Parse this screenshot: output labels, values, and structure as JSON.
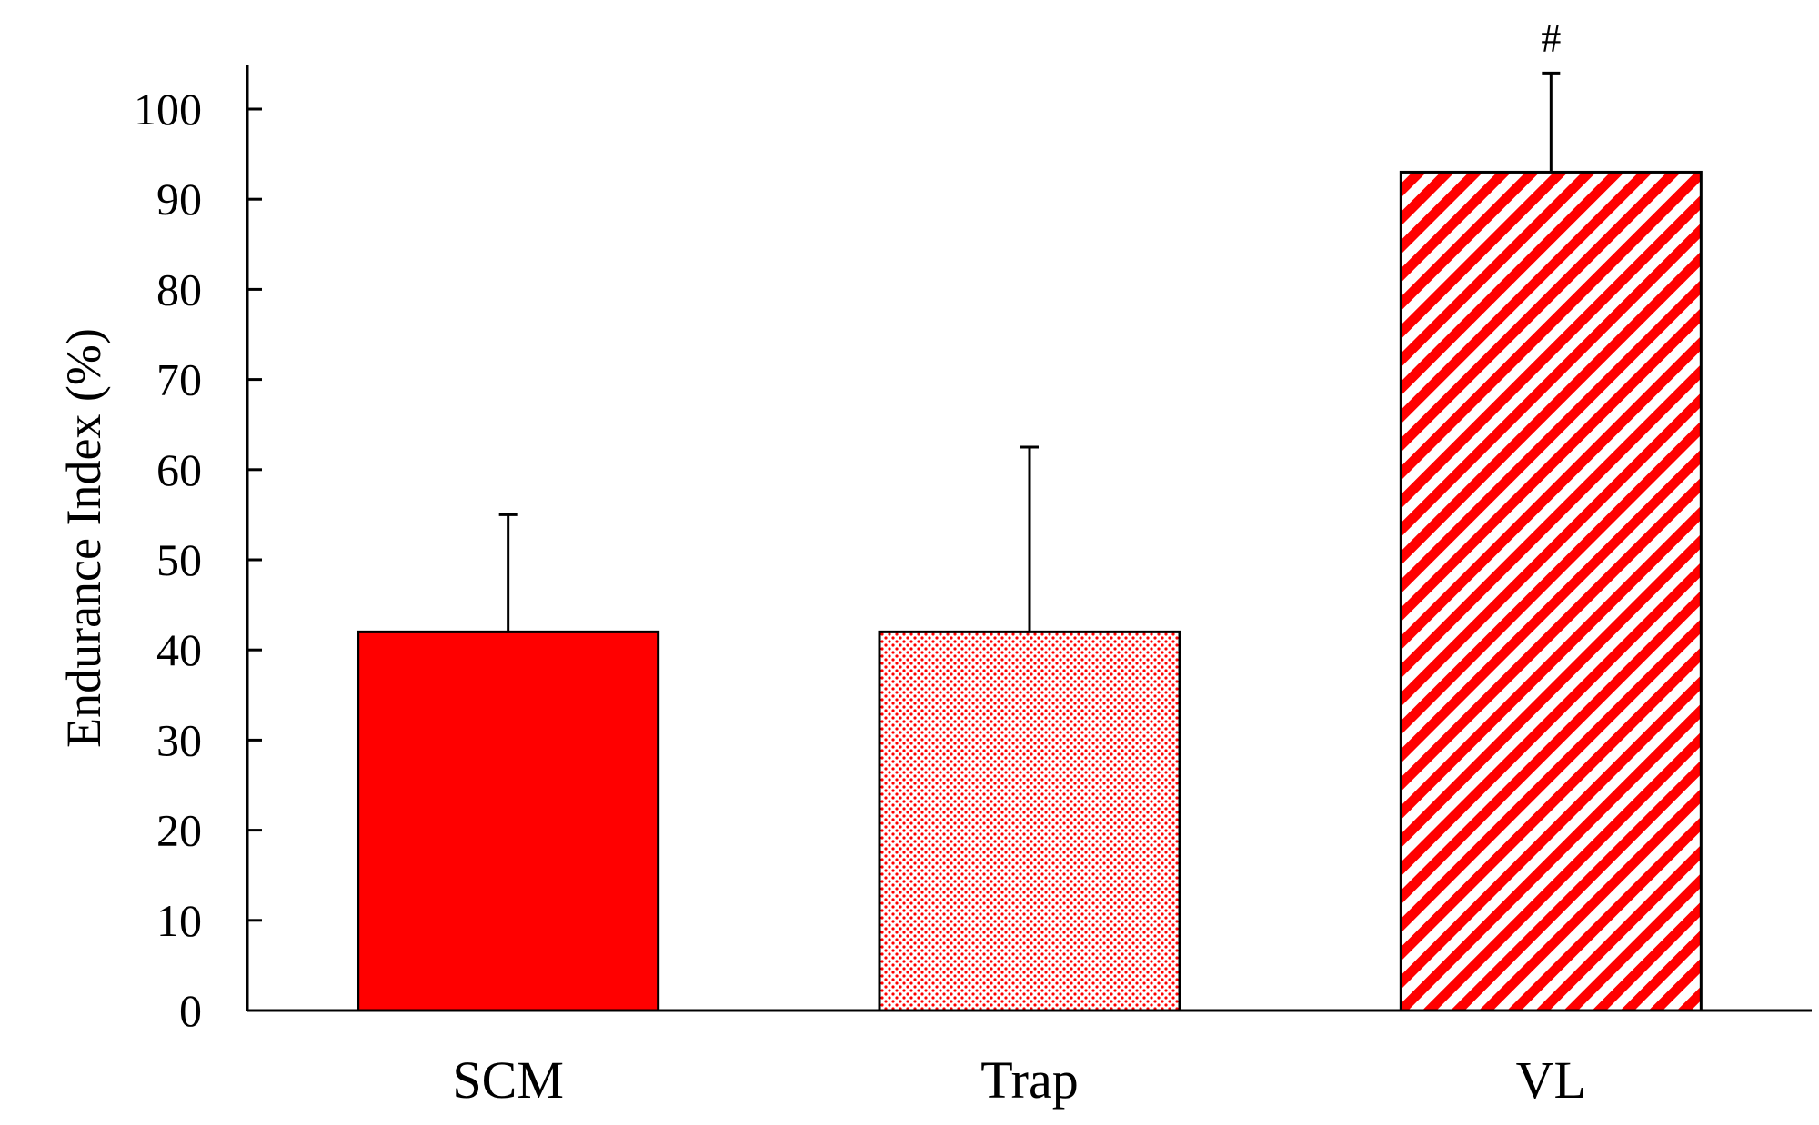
{
  "chart_data": {
    "type": "bar",
    "categories": [
      "SCM",
      "Trap",
      "VL"
    ],
    "values": [
      42,
      42,
      93
    ],
    "error_plus": [
      13,
      20.5,
      11
    ],
    "annotations": [
      {
        "category": "VL",
        "text": "#"
      }
    ],
    "title": "",
    "xlabel": "",
    "ylabel": "Endurance Index (%)",
    "ylim": [
      0,
      100
    ],
    "yticks": [
      0,
      10,
      20,
      30,
      40,
      50,
      60,
      70,
      80,
      90,
      100
    ],
    "grid": false,
    "legend": "none",
    "fills": [
      {
        "category": "SCM",
        "pattern": "solid",
        "color": "#ff0000"
      },
      {
        "category": "Trap",
        "pattern": "dotted",
        "color": "#ff0000"
      },
      {
        "category": "VL",
        "pattern": "diagonal-stripes",
        "color": "#ff0000"
      }
    ]
  }
}
